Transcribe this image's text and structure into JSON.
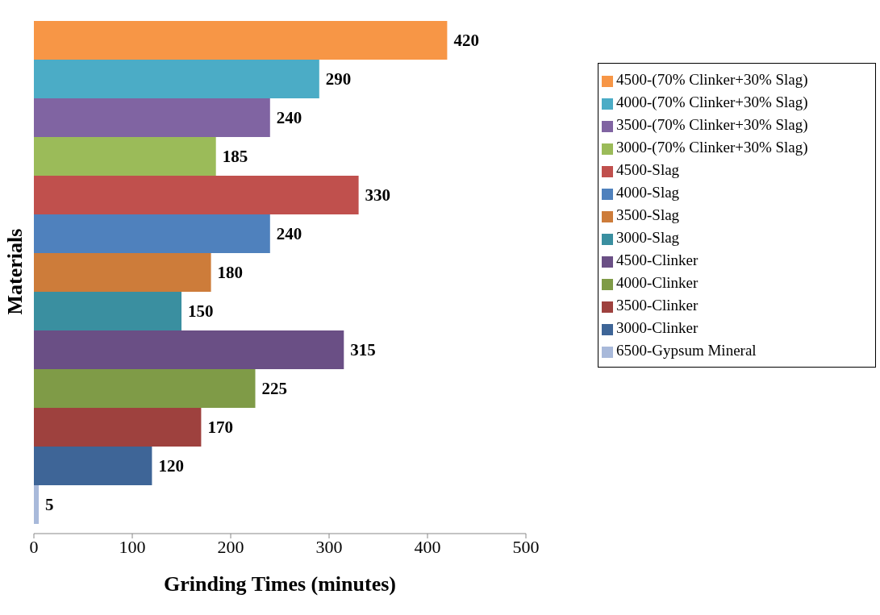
{
  "chart_data": {
    "type": "bar",
    "orientation": "horizontal",
    "xlabel": "Grinding Times (minutes)",
    "ylabel": "Materials",
    "categories": [
      null
    ],
    "series": [
      {
        "name": "4500-(70% Clinker+30% Slag)",
        "color": "#f79646",
        "values": [
          420
        ]
      },
      {
        "name": "4000-(70% Clinker+30% Slag)",
        "color": "#4bacc6",
        "values": [
          290
        ]
      },
      {
        "name": "3500-(70% Clinker+30% Slag)",
        "color": "#8064a2",
        "values": [
          240
        ]
      },
      {
        "name": "3000-(70% Clinker+30% Slag)",
        "color": "#9bbb59",
        "values": [
          185
        ]
      },
      {
        "name": "4500-Slag",
        "color": "#c0504d",
        "values": [
          330
        ]
      },
      {
        "name": "4000-Slag",
        "color": "#4f81bd",
        "values": [
          240
        ]
      },
      {
        "name": "3500-Slag",
        "color": "#cd7c3a",
        "values": [
          180
        ]
      },
      {
        "name": "3000-Slag",
        "color": "#3a8fa0",
        "values": [
          150
        ]
      },
      {
        "name": "4500-Clinker",
        "color": "#6a4f85",
        "values": [
          315
        ]
      },
      {
        "name": "4000-Clinker",
        "color": "#7f9b47",
        "values": [
          225
        ]
      },
      {
        "name": "3500-Clinker",
        "color": "#9e413e",
        "values": [
          170
        ]
      },
      {
        "name": "3000-Clinker",
        "color": "#3e6597",
        "values": [
          120
        ]
      },
      {
        "name": "6500-Gypsum Mineral",
        "color": "#a8b9da",
        "values": [
          5
        ]
      }
    ],
    "xlim": [
      0,
      500
    ],
    "xticks": [
      0,
      100,
      200,
      300,
      400,
      500
    ],
    "data_labels": true,
    "grid": false,
    "legend": "right",
    "tick_labels": "x"
  }
}
